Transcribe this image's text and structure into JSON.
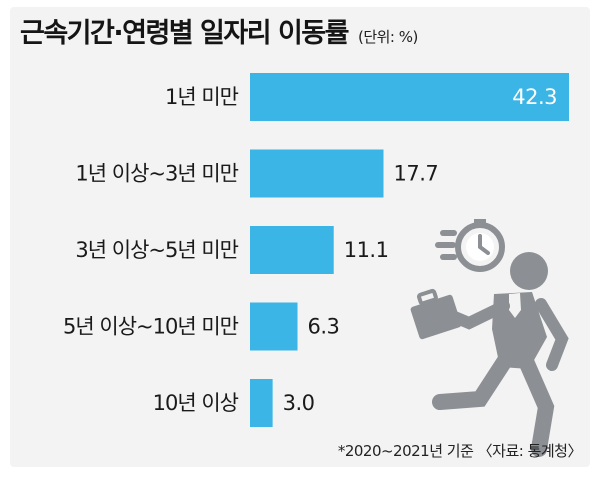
{
  "header": {
    "title": "근속기간·연령별 일자리 이동률",
    "unit": "(단위: %)"
  },
  "footnote": "*2020~2021년 기준 〈자료: 통계청〉",
  "colors": {
    "bar": "#3bb4e6",
    "background": "#f3f3f3",
    "illustration": "#8c8f93"
  },
  "illustration_icon": "running-businessman-with-clock-icon",
  "chart_data": {
    "type": "bar",
    "orientation": "horizontal",
    "categories": [
      "1년 미만",
      "1년 이상~3년 미만",
      "3년 이상~5년 미만",
      "5년 이상~10년 미만",
      "10년 이상"
    ],
    "values": [
      42.3,
      17.7,
      11.1,
      6.3,
      3.0
    ],
    "value_labels": [
      "42.3",
      "17.7",
      "11.1",
      "6.3",
      "3.0"
    ],
    "xlim": [
      0,
      42.3
    ],
    "grid": false,
    "legend": "none"
  }
}
